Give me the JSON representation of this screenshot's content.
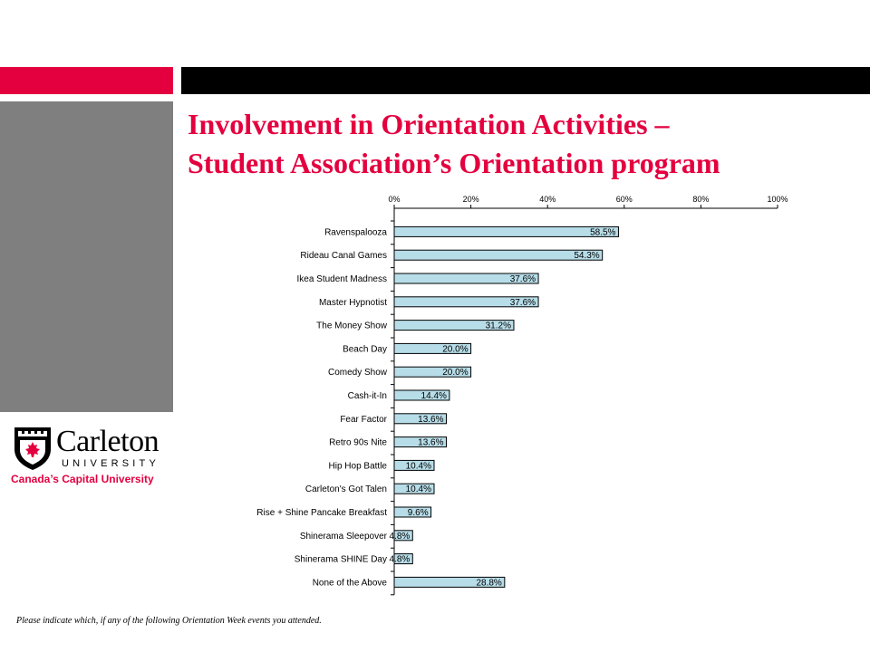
{
  "slide": {
    "title_line1": "Involvement in Orientation Activities –",
    "title_line2": "Student Association’s Orientation program",
    "footnote": "Please indicate which, if any of the following Orientation Week events you attended.",
    "logo": {
      "wordmark": "Carleton",
      "university": "UNIVERSITY",
      "tagline": "Canada’s Capital University"
    },
    "colors": {
      "accent": "#e4003f",
      "bar_fill": "#b7dde8",
      "panel": "#7f7f7f"
    }
  },
  "chart_data": {
    "type": "bar",
    "orientation": "horizontal",
    "categories": [
      "Ravenspalooza",
      "Rideau Canal Games",
      "Ikea Student Madness",
      "Master Hypnotist",
      "The Money Show",
      "Beach Day",
      "Comedy Show",
      "Cash-it-In",
      "Fear Factor",
      "Retro 90s Nite",
      "Hip Hop Battle",
      "Carleton's Got Talen",
      "Rise + Shine Pancake Breakfast",
      "Shinerama Sleepover",
      "Shinerama SHINE Day",
      "None of the Above"
    ],
    "values": [
      58.5,
      54.3,
      37.6,
      37.6,
      31.2,
      20.0,
      20.0,
      14.4,
      13.6,
      13.6,
      10.4,
      10.4,
      9.6,
      4.8,
      4.8,
      28.8
    ],
    "value_labels": [
      "58.5%",
      "54.3%",
      "37.6%",
      "37.6%",
      "31.2%",
      "20.0%",
      "20.0%",
      "14.4%",
      "13.6%",
      "13.6%",
      "10.4%",
      "10.4%",
      "9.6%",
      "4.8%",
      "4.8%",
      "28.8%"
    ],
    "xlim": [
      0,
      100
    ],
    "x_ticks": [
      0,
      20,
      40,
      60,
      80,
      100
    ],
    "x_tick_labels": [
      "0%",
      "20%",
      "40%",
      "60%",
      "80%",
      "100%"
    ],
    "x_axis_position": "top",
    "grid": false,
    "legend": false
  }
}
